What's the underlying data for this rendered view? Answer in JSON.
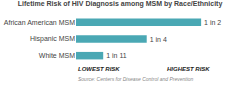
{
  "chart_data": {
    "type": "bar",
    "orientation": "horizontal",
    "title": "Lifetime Risk of HIV Diagnosis among MSM by Race/Ethnicity",
    "categories": [
      "African American MSM",
      "Hispanic MSM",
      "White MSM"
    ],
    "values": [
      0.92,
      0.52,
      0.2
    ],
    "value_labels": [
      "1 in 2",
      "1 in 4",
      "1 in 11"
    ],
    "data_labels": true,
    "color": "#4aa8b4",
    "xlim": [
      0,
      1
    ],
    "tick_labels": "y",
    "grid": false,
    "annotations": [
      "LOWEST RISK",
      "HIGHEST RISK",
      "Source: Centers for Disease Control and Prevention"
    ]
  }
}
